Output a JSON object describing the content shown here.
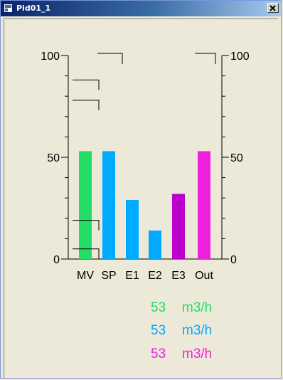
{
  "window": {
    "title": "Pid01_1"
  },
  "icons": {
    "app": "window-app-icon",
    "close": "close-icon"
  },
  "colors": {
    "mv": "#22dd66",
    "sp": "#00aaff",
    "e": "#00aaff",
    "e3": "#bb00cc",
    "out": "#ee22dd"
  },
  "chart_data": {
    "type": "bar",
    "categories": [
      "MV",
      "SP",
      "E1",
      "E2",
      "E3",
      "Out"
    ],
    "values": [
      53,
      53,
      29,
      14,
      32,
      53
    ],
    "ylim": [
      0,
      100
    ],
    "left_axis_ticks": [
      "100",
      "50",
      "0"
    ],
    "right_axis_ticks": [
      "100",
      "50",
      "0"
    ],
    "grid": false,
    "limit_markers": [
      {
        "value": 88
      },
      {
        "value": 78
      },
      {
        "value": 19
      },
      {
        "value": 5
      }
    ],
    "top_markers": [
      {
        "category": "SP",
        "value": 100
      },
      {
        "category": "Out",
        "value": 100
      }
    ]
  },
  "readouts": [
    {
      "value": "53",
      "unit": "m3/h",
      "color": "#22dd66"
    },
    {
      "value": "53",
      "unit": "m3/h",
      "color": "#00aaff"
    },
    {
      "value": "53",
      "unit": "m3/h",
      "color": "#ee22dd"
    }
  ]
}
